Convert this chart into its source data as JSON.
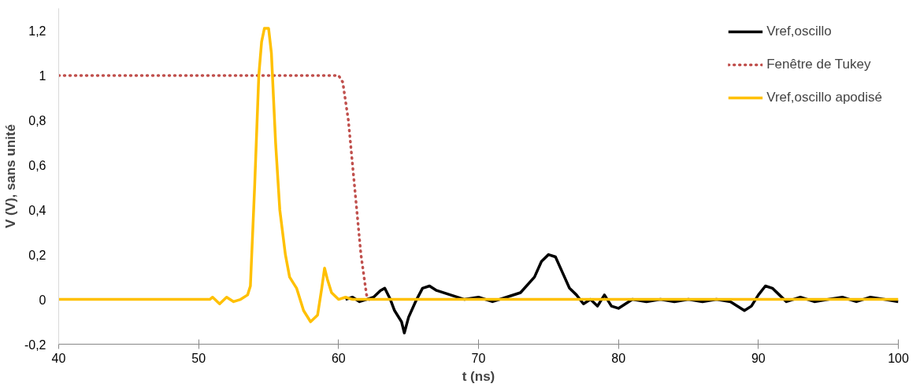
{
  "chart_data": {
    "type": "line",
    "xlabel": "t (ns)",
    "ylabel": "V (V), sans unité",
    "xlim": [
      40,
      100
    ],
    "xticks": [
      40,
      50,
      60,
      70,
      80,
      90,
      100
    ],
    "ylim": [
      -0.2,
      1.3
    ],
    "yticks": [
      {
        "value": -0.2,
        "label": "-0,2"
      },
      {
        "value": 0,
        "label": "0"
      },
      {
        "value": 0.2,
        "label": "0,2"
      },
      {
        "value": 0.4,
        "label": "0,4"
      },
      {
        "value": 0.6,
        "label": "0,6"
      },
      {
        "value": 0.8,
        "label": "0,8"
      },
      {
        "value": 1,
        "label": "1"
      },
      {
        "value": 1.2,
        "label": "1,2"
      }
    ],
    "grid": false,
    "legend": "top right",
    "marker": "none",
    "series": [
      {
        "name": "Vref,oscillo",
        "color": "#000000",
        "line_style": "solid",
        "x": [
          60.5,
          61,
          61.5,
          62,
          62.5,
          63,
          63.3,
          63.7,
          64,
          64.5,
          64.7,
          65,
          65.5,
          66,
          66.5,
          67,
          68,
          69,
          70,
          71,
          72,
          73,
          74,
          74.5,
          75,
          75.5,
          76,
          76.5,
          77,
          77.5,
          78,
          78.5,
          79,
          79.5,
          80,
          81,
          82,
          83,
          84,
          85,
          86,
          87,
          88,
          89,
          89.5,
          90,
          90.5,
          91,
          91.5,
          92,
          93,
          94,
          95,
          96,
          97,
          98,
          99,
          100
        ],
        "values": [
          0.0,
          0.01,
          -0.01,
          0.0,
          0.01,
          0.04,
          0.05,
          0.0,
          -0.05,
          -0.1,
          -0.15,
          -0.08,
          -0.01,
          0.05,
          0.06,
          0.04,
          0.02,
          0.0,
          0.01,
          -0.01,
          0.01,
          0.03,
          0.1,
          0.17,
          0.2,
          0.19,
          0.12,
          0.05,
          0.02,
          -0.02,
          0.0,
          -0.03,
          0.02,
          -0.03,
          -0.04,
          0.0,
          -0.01,
          0.0,
          -0.01,
          0.0,
          -0.01,
          0.0,
          -0.01,
          -0.05,
          -0.03,
          0.02,
          0.06,
          0.05,
          0.02,
          -0.01,
          0.01,
          -0.01,
          0.0,
          0.01,
          -0.01,
          0.01,
          0.0,
          -0.01
        ]
      },
      {
        "name": "Fenêtre de Tukey",
        "color": "#c0504d",
        "line_style": "dotted",
        "x": [
          40,
          60,
          60.3,
          60.7,
          61,
          61.3,
          61.6,
          62,
          62.2
        ],
        "values": [
          1,
          1,
          0.97,
          0.8,
          0.6,
          0.4,
          0.2,
          0.02,
          0
        ]
      },
      {
        "name": "Vref,oscillo apodisé",
        "color": "#ffc000",
        "line_style": "solid",
        "x": [
          40,
          50.8,
          51,
          51.5,
          52,
          52.5,
          53,
          53.5,
          53.7,
          54,
          54.3,
          54.5,
          54.7,
          55,
          55.2,
          55.5,
          55.8,
          56.2,
          56.5,
          57,
          57.5,
          58,
          58.5,
          58.8,
          59,
          59.2,
          59.5,
          60,
          60.5,
          61,
          62,
          70,
          100
        ],
        "values": [
          0,
          0,
          0.01,
          -0.02,
          0.01,
          -0.01,
          0.0,
          0.02,
          0.06,
          0.5,
          1.0,
          1.15,
          1.21,
          1.21,
          1.1,
          0.7,
          0.4,
          0.2,
          0.1,
          0.05,
          -0.05,
          -0.1,
          -0.07,
          0.05,
          0.14,
          0.09,
          0.03,
          0.0,
          0.01,
          0.0,
          0.0,
          0,
          0
        ]
      }
    ]
  }
}
